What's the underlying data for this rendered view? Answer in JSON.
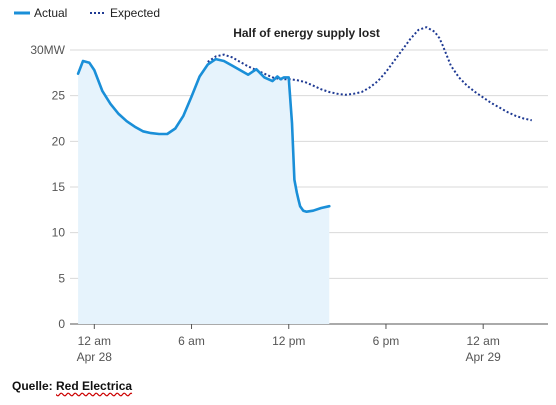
{
  "chart_data": {
    "type": "line",
    "annotation": "Half of energy supply lost",
    "source": {
      "prefix": "Quelle: ",
      "name": "Red Electrica"
    },
    "x_ticks": [
      {
        "hour": 0,
        "label": "12 am",
        "sublabel": "Apr 28"
      },
      {
        "hour": 6,
        "label": "6 am",
        "sublabel": ""
      },
      {
        "hour": 12,
        "label": "12 pm",
        "sublabel": ""
      },
      {
        "hour": 18,
        "label": "6 pm",
        "sublabel": ""
      },
      {
        "hour": 24,
        "label": "12 am",
        "sublabel": "Apr 29"
      }
    ],
    "y_ticks": [
      {
        "value": 0,
        "label": "0"
      },
      {
        "value": 5,
        "label": "5"
      },
      {
        "value": 10,
        "label": "10"
      },
      {
        "value": 15,
        "label": "15"
      },
      {
        "value": 20,
        "label": "20"
      },
      {
        "value": 25,
        "label": "25"
      },
      {
        "value": 30,
        "label": "30MW"
      }
    ],
    "xlim": [
      -1.5,
      28
    ],
    "ylim": [
      0,
      30
    ],
    "grid": true,
    "legend_position": "top-left",
    "series": [
      {
        "name": "Actual",
        "style": "solid",
        "color": "#1a8fd8",
        "fill": "#e6f3fc",
        "x": [
          -1.0,
          -0.7,
          -0.3,
          0.0,
          0.5,
          1.0,
          1.5,
          2.0,
          2.5,
          3.0,
          3.5,
          4.0,
          4.5,
          5.0,
          5.5,
          6.0,
          6.5,
          7.0,
          7.5,
          8.0,
          8.5,
          9.0,
          9.5,
          10.0,
          10.5,
          11.0,
          11.3,
          11.5,
          11.7,
          12.0,
          12.2,
          12.35,
          12.5,
          12.6,
          12.7,
          12.9,
          13.1,
          13.5,
          14.0,
          14.5
        ],
        "y": [
          27.4,
          28.8,
          28.6,
          27.8,
          25.5,
          24.1,
          23.0,
          22.2,
          21.6,
          21.1,
          20.9,
          20.8,
          20.8,
          21.4,
          22.8,
          24.9,
          27.1,
          28.4,
          29.0,
          28.8,
          28.3,
          27.8,
          27.3,
          27.9,
          27.0,
          26.6,
          27.1,
          26.8,
          27.0,
          27.0,
          22.0,
          15.8,
          14.4,
          13.6,
          12.9,
          12.4,
          12.3,
          12.4,
          12.7,
          12.9
        ]
      },
      {
        "name": "Expected",
        "style": "dotted",
        "color": "#1f3a93",
        "x": [
          7.0,
          7.5,
          8.0,
          8.5,
          9.0,
          9.5,
          10.0,
          10.5,
          11.0,
          11.5,
          12.0,
          12.5,
          13.0,
          13.5,
          14.0,
          14.5,
          15.0,
          15.5,
          16.0,
          16.5,
          17.0,
          17.5,
          18.0,
          18.5,
          19.0,
          19.5,
          20.0,
          20.5,
          21.0,
          21.3,
          21.5,
          21.8,
          22.0,
          22.5,
          23.0,
          23.5,
          24.0,
          24.5,
          25.0,
          25.5,
          26.0,
          26.5,
          27.0
        ],
        "y": [
          28.7,
          29.3,
          29.5,
          29.2,
          28.7,
          28.2,
          27.8,
          27.4,
          27.0,
          26.8,
          26.8,
          26.7,
          26.5,
          26.1,
          25.7,
          25.4,
          25.2,
          25.1,
          25.2,
          25.4,
          25.9,
          26.6,
          27.6,
          28.8,
          30.0,
          31.2,
          32.2,
          32.5,
          32.0,
          31.3,
          30.5,
          29.2,
          28.3,
          27.0,
          26.1,
          25.4,
          24.8,
          24.2,
          23.7,
          23.2,
          22.8,
          22.5,
          22.3
        ]
      }
    ]
  }
}
